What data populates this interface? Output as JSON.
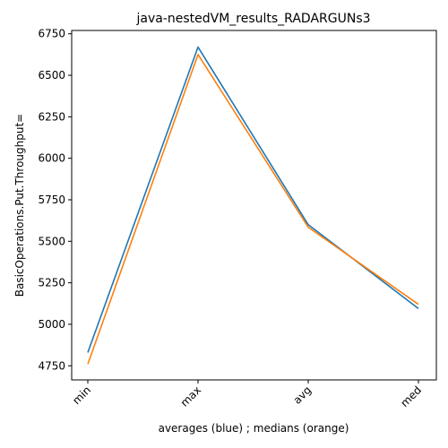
{
  "chart_data": {
    "type": "line",
    "title": "java-nestedVM_results_RADARGUNs3",
    "xlabel": "averages (blue) ; medians (orange)",
    "ylabel": "BasicOperations.Put.Throughput=",
    "categories": [
      "min",
      "max",
      "avg",
      "med"
    ],
    "series": [
      {
        "color": "#1f77b4",
        "values": [
          4830,
          6670,
          5600,
          5095
        ]
      },
      {
        "color": "#ff7f0e",
        "values": [
          4760,
          6625,
          5585,
          5120
        ]
      }
    ],
    "ylim": [
      4665,
      6770
    ],
    "yticks": [
      4750,
      5000,
      5250,
      5500,
      5750,
      6000,
      6250,
      6500,
      6750
    ],
    "grid": false,
    "legend": "none"
  }
}
